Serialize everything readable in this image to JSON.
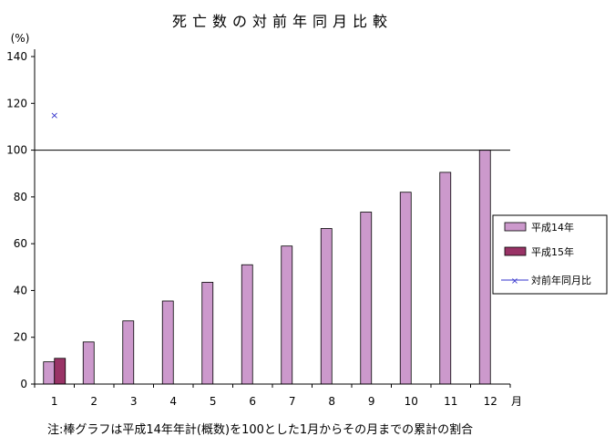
{
  "chart_data": {
    "type": "bar",
    "title": "死亡数の対前年同月比較",
    "y_unit_label": "(%)",
    "x_unit_label": "月",
    "ylim": [
      0,
      140
    ],
    "y_ticks": [
      0,
      20,
      40,
      60,
      80,
      100,
      120,
      140
    ],
    "categories": [
      "1",
      "2",
      "3",
      "4",
      "5",
      "6",
      "7",
      "8",
      "9",
      "10",
      "11",
      "12"
    ],
    "reference_line": 100,
    "grid": false,
    "legend_position": "right",
    "series": [
      {
        "name": "平成14年",
        "type": "bar",
        "color": "#cc99cc",
        "values": [
          9.5,
          18,
          27,
          35.5,
          43.5,
          51,
          59,
          66.5,
          73.5,
          82,
          90.5,
          100
        ]
      },
      {
        "name": "平成15年",
        "type": "bar",
        "color": "#993366",
        "values": [
          11,
          null,
          null,
          null,
          null,
          null,
          null,
          null,
          null,
          null,
          null,
          null
        ]
      },
      {
        "name": "対前年同月比",
        "type": "line",
        "color": "#3333cc",
        "marker": "x",
        "values": [
          115,
          null,
          null,
          null,
          null,
          null,
          null,
          null,
          null,
          null,
          null,
          null
        ]
      }
    ],
    "note": "注:棒グラフは平成14年年計(概数)を100とした1月からその月までの累計の割合"
  }
}
